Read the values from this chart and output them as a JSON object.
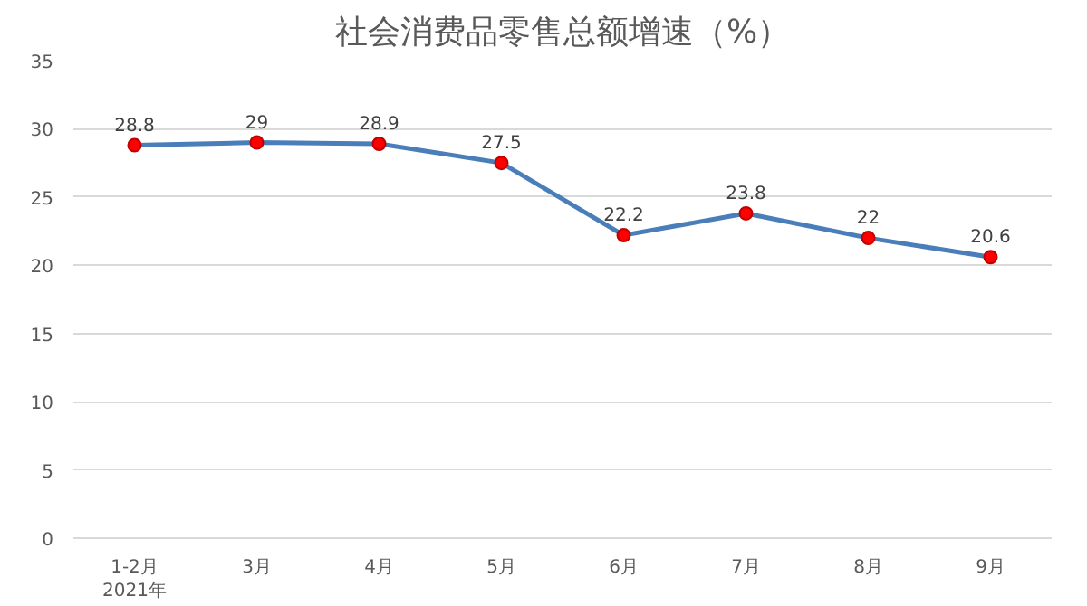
{
  "chart_data": {
    "type": "line",
    "title": "社会消费品零售总额增速（%）",
    "categories": [
      "1-2月\n2021年",
      "3月",
      "4月",
      "5月",
      "6月",
      "7月",
      "8月",
      "9月"
    ],
    "series": [
      {
        "color": "#4a7ebb",
        "values": [
          28.8,
          29,
          28.9,
          27.5,
          22.2,
          23.8,
          22,
          20.6
        ]
      }
    ],
    "ylim": [
      0,
      35
    ],
    "yticks": [
      0,
      5,
      10,
      15,
      20,
      25,
      30,
      35
    ],
    "grid": "y",
    "marker": "circle",
    "data_labels": true
  }
}
